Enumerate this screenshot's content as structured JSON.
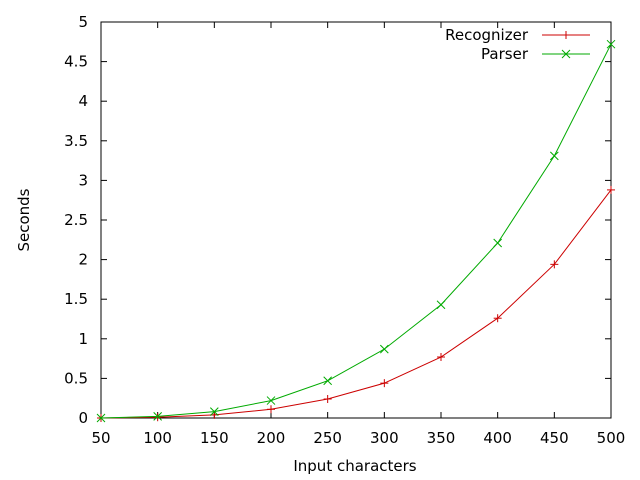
{
  "chart_data": {
    "type": "line",
    "title": "",
    "xlabel": "Input characters",
    "ylabel": "Seconds",
    "xlim": [
      50,
      500
    ],
    "ylim": [
      0,
      5
    ],
    "xticks": [
      "50",
      "100",
      "150",
      "200",
      "250",
      "300",
      "350",
      "400",
      "450",
      "500"
    ],
    "yticks": [
      "0",
      "0.5",
      "1",
      "1.5",
      "2",
      "2.5",
      "3",
      "3.5",
      "4",
      "4.5",
      "5"
    ],
    "grid": false,
    "legend_position": "top-right",
    "x": [
      50,
      100,
      150,
      200,
      250,
      300,
      350,
      400,
      450,
      500
    ],
    "series": [
      {
        "name": "Recognizer",
        "color": "#cc0000",
        "marker": "plus",
        "values": [
          0.0,
          0.01,
          0.04,
          0.11,
          0.24,
          0.44,
          0.77,
          1.26,
          1.94,
          2.88
        ]
      },
      {
        "name": "Parser",
        "color": "#00aa00",
        "marker": "cross",
        "values": [
          0.0,
          0.02,
          0.08,
          0.22,
          0.47,
          0.87,
          1.43,
          2.21,
          3.31,
          4.72
        ]
      }
    ]
  }
}
